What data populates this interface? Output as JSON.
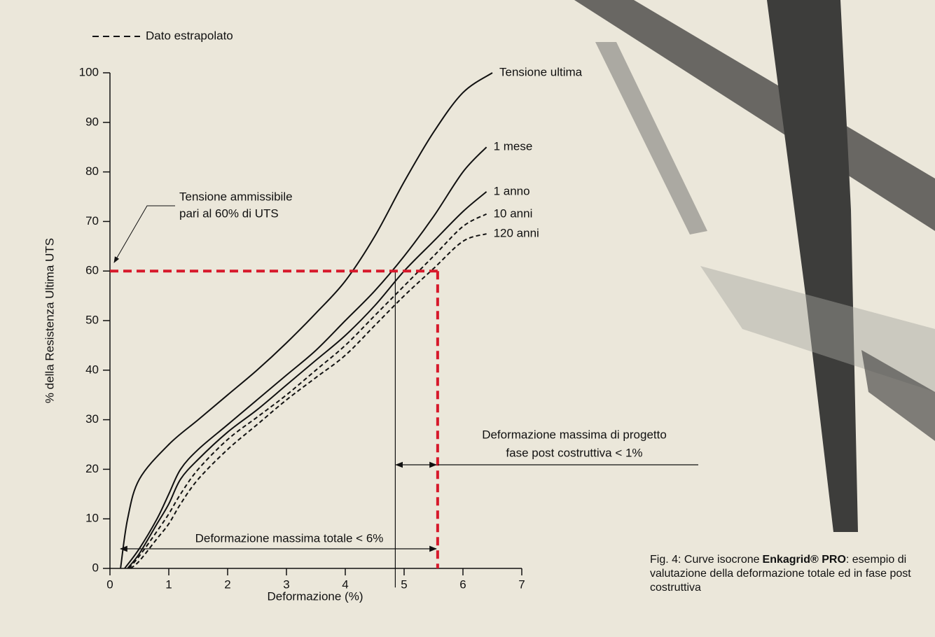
{
  "chart_data": {
    "type": "line",
    "legend_label": "Dato estrapolato",
    "xlabel": "Deformazione (%)",
    "ylabel": "% della Resistenza Ultima UTS",
    "xlim": [
      0,
      7
    ],
    "ylim": [
      0,
      100
    ],
    "xticks": [
      0,
      1,
      2,
      3,
      4,
      5,
      6,
      7
    ],
    "yticks": [
      0,
      10,
      20,
      30,
      40,
      50,
      60,
      70,
      80,
      90,
      100
    ],
    "series": [
      {
        "name": "Tensione ultima",
        "color": "#111111",
        "dashed": false,
        "x": [
          0.18,
          0.3,
          0.5,
          1,
          1.5,
          2,
          2.5,
          3,
          3.5,
          4,
          4.5,
          5,
          5.5,
          6,
          6.5
        ],
        "values": [
          0,
          10,
          18,
          25,
          30,
          35,
          40,
          45.5,
          51.5,
          58,
          67,
          78,
          88,
          96,
          100
        ]
      },
      {
        "name": "1 mese",
        "color": "#111111",
        "dashed": false,
        "x": [
          0.25,
          0.5,
          0.8,
          1,
          1.2,
          1.5,
          2,
          2.5,
          3,
          3.5,
          4,
          4.5,
          5,
          5.5,
          6,
          6.4
        ],
        "values": [
          0,
          4,
          10,
          15,
          20,
          24,
          29,
          34,
          39,
          44,
          50,
          56,
          63,
          71,
          80,
          85
        ]
      },
      {
        "name": "1 anno",
        "color": "#111111",
        "dashed": false,
        "x": [
          0.3,
          0.5,
          0.8,
          1,
          1.2,
          1.5,
          2,
          2.5,
          3,
          3.5,
          4,
          4.5,
          5,
          5.5,
          6,
          6.4
        ],
        "values": [
          0,
          3,
          9,
          13,
          18,
          22,
          27.5,
          32,
          37,
          42,
          47,
          53,
          60,
          66,
          72,
          76
        ]
      },
      {
        "name": "10 anni",
        "color": "#111111",
        "dashed": true,
        "x": [
          0.32,
          0.5,
          0.8,
          1,
          1.2,
          1.5,
          2,
          2.5,
          3,
          3.5,
          4,
          4.5,
          5,
          5.5,
          6,
          6.4
        ],
        "values": [
          0,
          2.5,
          7.5,
          11,
          15,
          20,
          26,
          30.5,
          35,
          40,
          45,
          51,
          57,
          63,
          69,
          71.5
        ]
      },
      {
        "name": "120 anni",
        "color": "#111111",
        "dashed": true,
        "x": [
          0.35,
          0.5,
          0.8,
          1,
          1.2,
          1.5,
          2,
          2.5,
          3,
          3.5,
          4,
          4.5,
          5,
          5.5,
          6,
          6.4
        ],
        "values": [
          0,
          1.5,
          6,
          9,
          13,
          18,
          24,
          29,
          34,
          38.5,
          43,
          49,
          55,
          60.5,
          66,
          67.5
        ]
      }
    ],
    "reference": {
      "color": "#d7192b",
      "y": 60,
      "x": 5.57,
      "design_x": 4.85
    },
    "annotations": {
      "allowable": [
        "Tensione ammissibile",
        "pari al 60% di UTS"
      ],
      "post": [
        "Deformazione massima di progetto",
        "fase post costruttiva < 1%"
      ],
      "total": "Deformazione massima totale < 6%"
    },
    "caption": {
      "prefix": "Fig. 4: Curve isocrone",
      "brand": "Enkagrid® PRO",
      "suffix": ": esempio di valutazione della deformazione totale ed in fase post costruttiva"
    }
  }
}
